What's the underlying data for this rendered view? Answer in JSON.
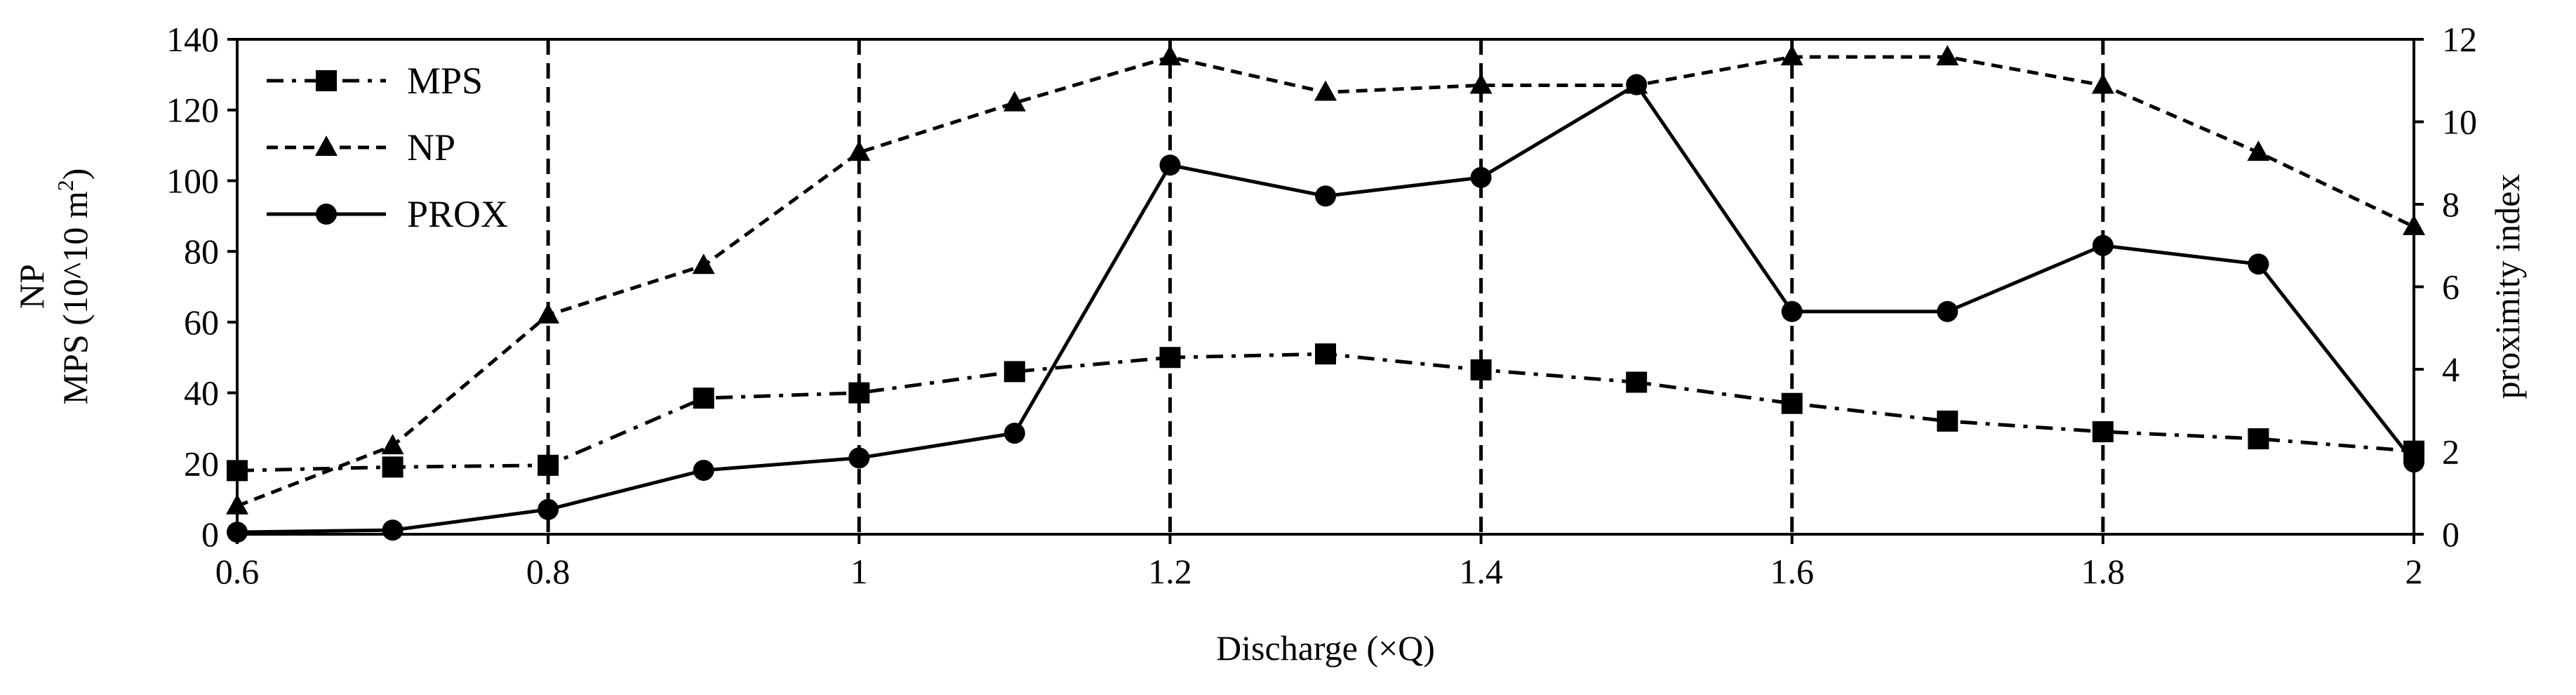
{
  "chart_data": {
    "type": "line",
    "x": [
      0.6,
      0.7,
      0.8,
      0.9,
      1.0,
      1.1,
      1.2,
      1.3,
      1.4,
      1.5,
      1.6,
      1.7,
      1.8,
      1.9,
      2.0
    ],
    "x_tick_labels": [
      "0.6",
      "0.8",
      "1",
      "1.2",
      "1.4",
      "1.6",
      "1.8",
      "2"
    ],
    "x_ticks": [
      0.6,
      0.8,
      1.0,
      1.2,
      1.4,
      1.6,
      1.8,
      2.0
    ],
    "xlim": [
      0.6,
      2.0
    ],
    "xlabel": "Discharge (×Q)",
    "ylabel_left_line1": "NP",
    "ylabel_left_line2": "MPS (10^10 m",
    "ylabel_left_sup": "2",
    "ylabel_left_close": ")",
    "ylabel_right": "proximity index",
    "ylim_left": [
      0,
      140
    ],
    "ylim_right": [
      0,
      12
    ],
    "y_left_ticks": [
      0,
      20,
      40,
      60,
      80,
      100,
      120,
      140
    ],
    "y_left_tick_labels": [
      "0",
      "20",
      "40",
      "60",
      "80",
      "100",
      "120",
      "140"
    ],
    "y_right_ticks": [
      0,
      2,
      4,
      6,
      8,
      10,
      12
    ],
    "y_right_tick_labels": [
      "0",
      "2",
      "4",
      "6",
      "8",
      "10",
      "12"
    ],
    "vertical_dashed_gridlines_at": [
      0.8,
      1.0,
      1.2,
      1.4,
      1.6,
      1.8
    ],
    "legend_position": "top-left",
    "series": [
      {
        "name": "MPS",
        "axis": "left",
        "marker": "square",
        "line_style": "dash-dot",
        "values": [
          18,
          19,
          19.5,
          38.5,
          40,
          46,
          50,
          51,
          46.5,
          43,
          37,
          32,
          29,
          27,
          23.5
        ]
      },
      {
        "name": "NP",
        "axis": "left",
        "marker": "triangle",
        "line_style": "dashed",
        "values": [
          8,
          25,
          62,
          76,
          108,
          122,
          135,
          125,
          127,
          127,
          135,
          135,
          127,
          108,
          87
        ]
      },
      {
        "name": "PROX",
        "axis": "right",
        "marker": "circle",
        "line_style": "solid",
        "values": [
          0.05,
          0.1,
          0.6,
          1.55,
          1.85,
          2.45,
          8.95,
          8.2,
          8.65,
          10.9,
          5.4,
          5.4,
          7.0,
          6.55,
          1.75
        ]
      }
    ]
  }
}
